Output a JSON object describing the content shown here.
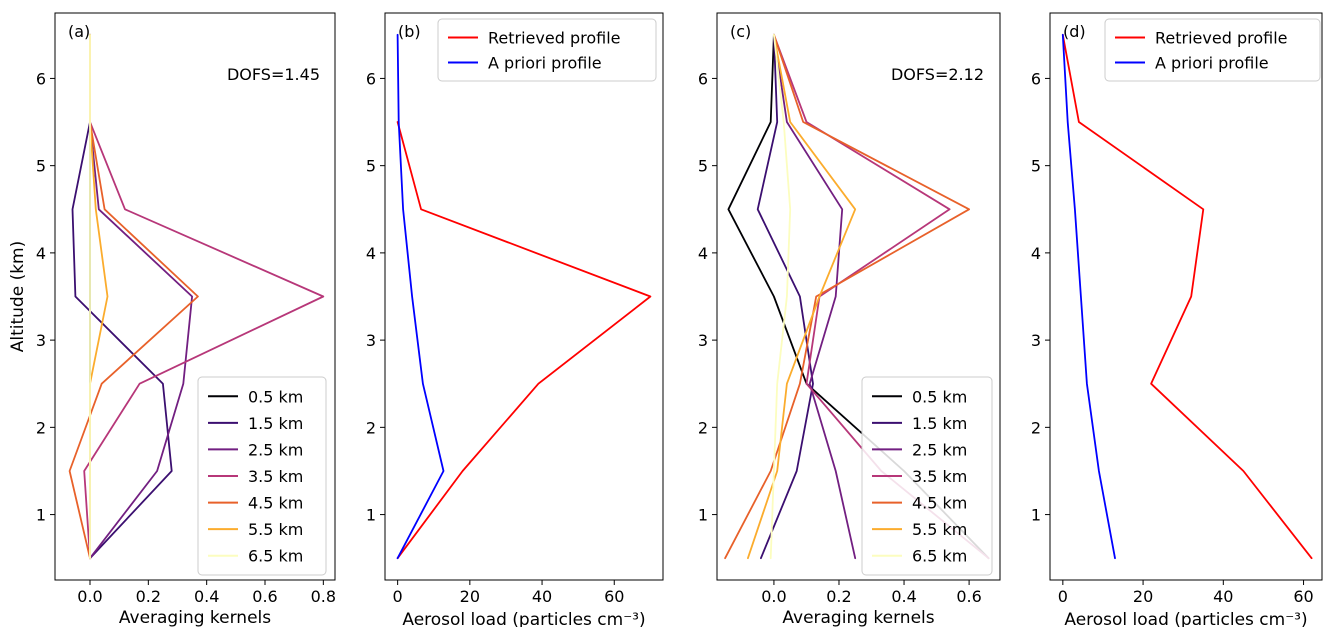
{
  "chart_data": [
    {
      "type": "line",
      "panel_label": "(a)",
      "annotation": "DOFS=1.45",
      "xlabel": "Averaging kernels",
      "ylabel": "Altitude (km)",
      "xlim": [
        -0.12,
        0.84
      ],
      "ylim": [
        0.25,
        6.75
      ],
      "xticks": [
        "0.0",
        "0.2",
        "0.4",
        "0.6",
        "0.8"
      ],
      "xtick_values": [
        0,
        0.2,
        0.4,
        0.6,
        0.8
      ],
      "yticks": [
        "1",
        "2",
        "3",
        "4",
        "5",
        "6"
      ],
      "ytick_values": [
        1,
        2,
        3,
        4,
        5,
        6
      ],
      "legend_position": "lower-right",
      "altitudes": [
        0.5,
        1.5,
        2.5,
        3.5,
        4.5,
        5.5,
        6.5
      ],
      "series": [
        {
          "name": "0.5 km",
          "color": "#000004",
          "values": [
            0.0,
            0.0,
            0.0,
            0.0,
            0.0,
            0.0,
            0.0
          ]
        },
        {
          "name": "1.5 km",
          "color": "#3b0f70",
          "values": [
            0.0,
            0.28,
            0.25,
            -0.05,
            -0.06,
            0.0,
            0.0
          ]
        },
        {
          "name": "2.5 km",
          "color": "#721f81",
          "values": [
            0.0,
            0.23,
            0.32,
            0.35,
            0.03,
            0.0,
            0.0
          ]
        },
        {
          "name": "3.5 km",
          "color": "#b73779",
          "values": [
            0.0,
            -0.02,
            0.17,
            0.8,
            0.12,
            0.0,
            0.0
          ]
        },
        {
          "name": "4.5 km",
          "color": "#e8612a",
          "values": [
            0.0,
            -0.07,
            0.04,
            0.37,
            0.05,
            0.0,
            0.0
          ]
        },
        {
          "name": "5.5 km",
          "color": "#fbac2d",
          "values": [
            0.0,
            0.0,
            0.0,
            0.06,
            0.02,
            0.0,
            0.0
          ]
        },
        {
          "name": "6.5 km",
          "color": "#fcfdbf",
          "values": [
            0.0,
            0.0,
            0.0,
            0.0,
            0.0,
            0.0,
            0.0
          ]
        }
      ]
    },
    {
      "type": "line",
      "panel_label": "(b)",
      "xlabel": "Aerosol load (particles cm⁻³)",
      "ylabel": "",
      "xlim": [
        -3.5,
        73.5
      ],
      "ylim": [
        0.25,
        6.75
      ],
      "xticks": [
        "0",
        "20",
        "40",
        "60"
      ],
      "xtick_values": [
        0,
        20,
        40,
        60
      ],
      "yticks": [
        "1",
        "2",
        "3",
        "4",
        "5",
        "6"
      ],
      "ytick_values": [
        1,
        2,
        3,
        4,
        5,
        6
      ],
      "legend_position": "upper-right",
      "series": [
        {
          "name": "Retrieved profile",
          "color": "#ff0000",
          "points": [
            [
              0,
              0.5
            ],
            [
              18,
              1.5
            ],
            [
              39,
              2.5
            ],
            [
              70,
              3.5
            ],
            [
              6.5,
              4.5
            ],
            [
              0,
              5.5
            ]
          ]
        },
        {
          "name": "A priori profile",
          "color": "#0000ff",
          "points": [
            [
              0,
              0.5
            ],
            [
              12.7,
              1.5
            ],
            [
              7,
              2.5
            ],
            [
              4,
              3.5
            ],
            [
              1.5,
              4.5
            ],
            [
              0.3,
              5.5
            ],
            [
              0,
              6.5
            ]
          ]
        }
      ]
    },
    {
      "type": "line",
      "panel_label": "(c)",
      "annotation": "DOFS=2.12",
      "xlabel": "Averaging kernels",
      "ylabel": "",
      "xlim": [
        -0.175,
        0.695
      ],
      "ylim": [
        0.25,
        6.75
      ],
      "xticks": [
        "0.0",
        "0.2",
        "0.4",
        "0.6"
      ],
      "xtick_values": [
        0,
        0.2,
        0.4,
        0.6
      ],
      "yticks": [
        "1",
        "2",
        "3",
        "4",
        "5",
        "6"
      ],
      "ytick_values": [
        1,
        2,
        3,
        4,
        5,
        6
      ],
      "legend_position": "lower-right",
      "altitudes": [
        0.5,
        1.5,
        2.5,
        3.5,
        4.5,
        5.5,
        6.5
      ],
      "series": [
        {
          "name": "0.5 km",
          "color": "#000004",
          "values": [
            0.66,
            0.4,
            0.1,
            0.0,
            -0.14,
            -0.01,
            0.0
          ]
        },
        {
          "name": "1.5 km",
          "color": "#3b0f70",
          "values": [
            -0.04,
            0.07,
            0.12,
            0.08,
            -0.05,
            0.01,
            0.0
          ]
        },
        {
          "name": "2.5 km",
          "color": "#721f81",
          "values": [
            0.25,
            0.19,
            0.11,
            0.19,
            0.21,
            0.04,
            0.0
          ]
        },
        {
          "name": "3.5 km",
          "color": "#b73779",
          "values": [
            0.66,
            0.33,
            0.1,
            0.14,
            0.54,
            0.1,
            0.0
          ]
        },
        {
          "name": "4.5 km",
          "color": "#e8612a",
          "values": [
            -0.15,
            -0.01,
            0.08,
            0.13,
            0.6,
            0.09,
            0.0
          ]
        },
        {
          "name": "5.5 km",
          "color": "#fbac2d",
          "values": [
            -0.08,
            0.01,
            0.04,
            0.14,
            0.25,
            0.05,
            0.0
          ]
        },
        {
          "name": "6.5 km",
          "color": "#fcfdbf",
          "values": [
            -0.01,
            0.0,
            0.01,
            0.04,
            0.05,
            0.03,
            0.0
          ]
        }
      ]
    },
    {
      "type": "line",
      "panel_label": "(d)",
      "xlabel": "Aerosol load (particles cm⁻³)",
      "ylabel": "",
      "xlim": [
        -3.2,
        64.6
      ],
      "ylim": [
        0.25,
        6.75
      ],
      "xticks": [
        "0",
        "20",
        "40",
        "60"
      ],
      "xtick_values": [
        0,
        20,
        40,
        60
      ],
      "yticks": [
        "1",
        "2",
        "3",
        "4",
        "5",
        "6"
      ],
      "ytick_values": [
        1,
        2,
        3,
        4,
        5,
        6
      ],
      "legend_position": "upper-right",
      "series": [
        {
          "name": "Retrieved profile",
          "color": "#ff0000",
          "points": [
            [
              62,
              0.5
            ],
            [
              45,
              1.5
            ],
            [
              22,
              2.5
            ],
            [
              32,
              3.5
            ],
            [
              35,
              4.5
            ],
            [
              4,
              5.5
            ],
            [
              0,
              6.5
            ]
          ]
        },
        {
          "name": "A priori profile",
          "color": "#0000ff",
          "points": [
            [
              13,
              0.5
            ],
            [
              9,
              1.5
            ],
            [
              6,
              2.5
            ],
            [
              4.5,
              3.5
            ],
            [
              3,
              4.5
            ],
            [
              1.2,
              5.5
            ],
            [
              0,
              6.5
            ]
          ]
        }
      ]
    }
  ]
}
